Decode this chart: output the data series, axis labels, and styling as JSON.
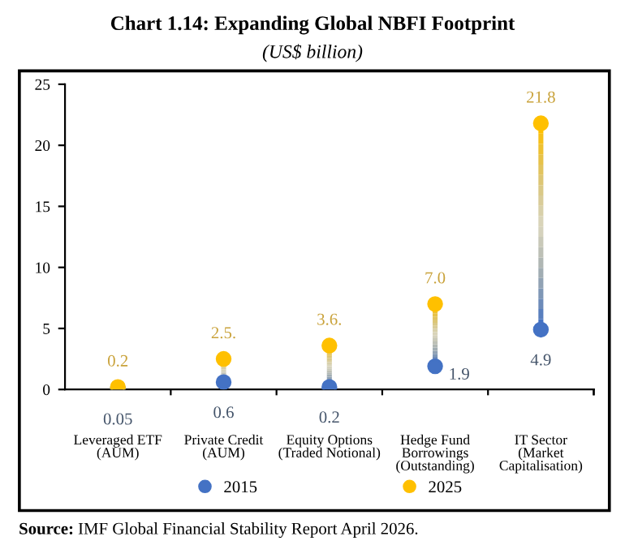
{
  "chart_data": {
    "type": "scatter",
    "title": "Chart 1.14: Expanding Global NBFI Footprint",
    "subtitle": "(US$ billion)",
    "categories": [
      "Leveraged ETF\n(AUM)",
      "Private Credit\n(AUM)",
      "Equity Options\n(Traded Notional)",
      "Hedge Fund\nBorrowings\n(Outstanding)",
      "IT Sector\n(Market\nCapitalisation)"
    ],
    "series": [
      {
        "name": "2015",
        "color": "#4472c4",
        "values": [
          0.05,
          0.6,
          0.2,
          1.9,
          4.9
        ],
        "value_labels": [
          "0.05",
          "0.6",
          "0.2",
          "1.9",
          "4.9"
        ]
      },
      {
        "name": "2025",
        "color": "#ffc000",
        "values": [
          0.2,
          2.5,
          3.6,
          7.0,
          21.8
        ],
        "value_labels": [
          "0.2",
          "2.5.",
          "3.6.",
          "7.0",
          "21.8"
        ]
      }
    ],
    "ylim": [
      0,
      25
    ],
    "yticks": [
      0,
      5,
      10,
      15,
      20,
      25
    ],
    "grid": false,
    "legend": "bottom",
    "marker": "circle",
    "annotations": [
      "Source: IMF Global Financial Stability Report April 2026."
    ]
  }
}
